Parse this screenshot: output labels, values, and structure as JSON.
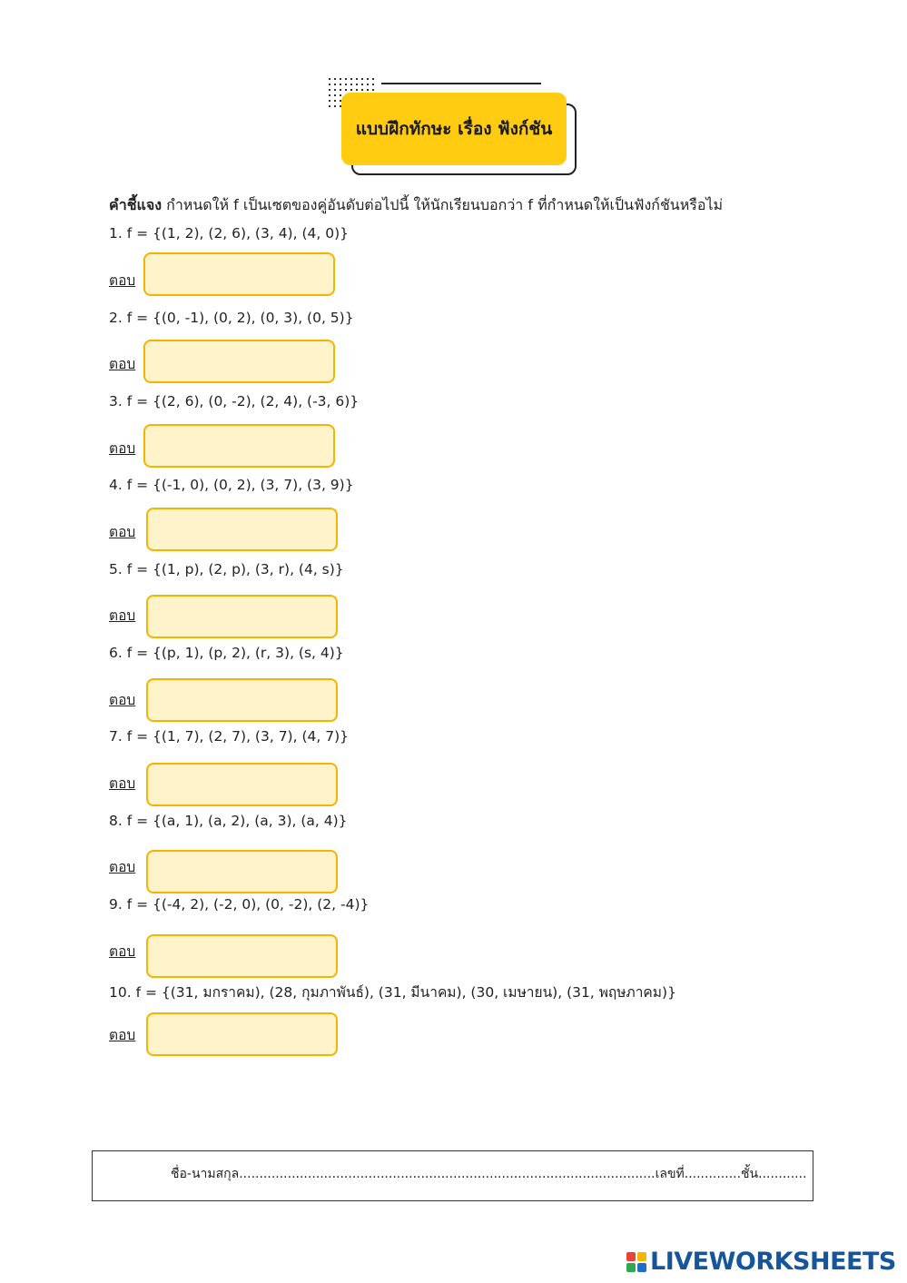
{
  "header": {
    "title": "แบบฝึกทักษะ เรื่อง ฟังก์ชัน"
  },
  "instructions": {
    "label": "คำชี้แจง",
    "text": " กำหนดให้ f เป็นเซตของคู่อันดับต่อไปนี้ ให้นักเรียนบอกว่า f ที่กำหนดให้เป็นฟังก์ชันหรือไม่"
  },
  "answer_label": "ตอบ",
  "questions": [
    {
      "text": "1. f = {(1, 2), (2, 6), (3, 4), (4, 0)}",
      "answer": ""
    },
    {
      "text": "2. f = {(0, -1), (0, 2), (0, 3), (0, 5)}",
      "answer": ""
    },
    {
      "text": "3. f = {(2, 6), (0, -2), (2, 4), (-3, 6)}",
      "answer": ""
    },
    {
      "text": "4. f = {(-1, 0), (0, 2), (3, 7), (3, 9)}",
      "answer": ""
    },
    {
      "text": "5. f = {(1, p), (2, p), (3, r), (4, s)}",
      "answer": ""
    },
    {
      "text": "6. f = {(p, 1), (p, 2), (r, 3), (s, 4)}",
      "answer": ""
    },
    {
      "text": "7. f = {(1, 7), (2, 7), (3, 7), (4, 7)}",
      "answer": ""
    },
    {
      "text": "8. f = {(a, 1), (a, 2), (a, 3), (a, 4)}",
      "answer": ""
    },
    {
      "text": "9. f = {(-4, 2), (-2, 0), (0, -2), (2, -4)}",
      "answer": ""
    },
    {
      "text": "10. f = {(31, มกราคม), (28, กุมภาพันธ์), (31, มีนาคม), (30, เมษายน), (31, พฤษภาคม)}",
      "answer": ""
    }
  ],
  "footer": {
    "text": "ชื่อ-นามสกุล.......................................................................................................เลขที่..............ชั้น............"
  },
  "logo": {
    "text": "LIVEWORKSHEETS"
  },
  "colors": {
    "accent": "#ffcc12",
    "answer_fill": "#fff3c9",
    "answer_border": "#f6b400",
    "logo": "#14559b"
  }
}
